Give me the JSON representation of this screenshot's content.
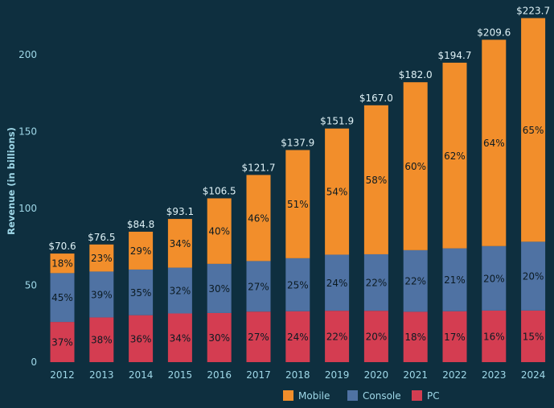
{
  "chart_data": {
    "type": "bar",
    "stacked": true,
    "title": "",
    "xlabel": "",
    "ylabel": "Revenue (in billions)",
    "ylim": [
      0,
      225
    ],
    "yticks": [
      0,
      50,
      100,
      150,
      200
    ],
    "legend_position": "bottom",
    "categories": [
      "2012",
      "2013",
      "2014",
      "2015",
      "2016",
      "2017",
      "2018",
      "2019",
      "2020",
      "2021",
      "2022",
      "2023",
      "2024"
    ],
    "totals": [
      70.6,
      76.5,
      84.8,
      93.1,
      106.5,
      121.7,
      137.9,
      151.9,
      167.0,
      182.0,
      194.7,
      209.6,
      223.7
    ],
    "total_labels": [
      "$70.6",
      "$76.5",
      "$84.8",
      "$93.1",
      "$106.5",
      "$121.7",
      "$137.9",
      "$151.9",
      "$167.0",
      "$182.0",
      "$194.7",
      "$209.6",
      "$223.7"
    ],
    "series": [
      {
        "name": "PC",
        "color": "#d43d51",
        "percents": [
          37,
          38,
          36,
          34,
          30,
          27,
          24,
          22,
          20,
          18,
          17,
          16,
          15
        ]
      },
      {
        "name": "Console",
        "color": "#4f72a3",
        "percents": [
          45,
          39,
          35,
          32,
          30,
          27,
          25,
          24,
          22,
          22,
          21,
          20,
          20
        ]
      },
      {
        "name": "Mobile",
        "color": "#f28e2b",
        "percents": [
          18,
          23,
          29,
          34,
          40,
          46,
          51,
          54,
          58,
          60,
          62,
          64,
          65
        ]
      }
    ],
    "legend_order": [
      "Mobile",
      "Console",
      "PC"
    ]
  },
  "colors": {
    "background": "#0e2f3f",
    "axis_text": "#9fd8e8",
    "total_text": "#dff2f7",
    "segment_text": "#0b1a22"
  }
}
